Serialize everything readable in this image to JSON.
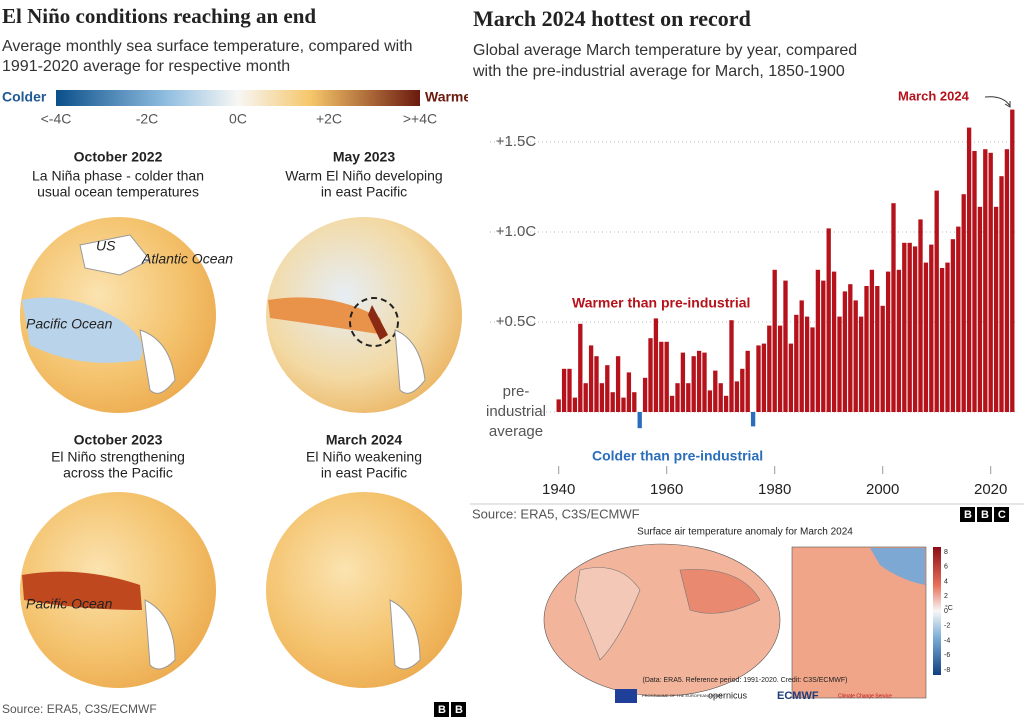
{
  "left_panel": {
    "title": "El Niño conditions reaching an end",
    "subtitle": [
      "Average monthly sea surface temperature, compared with",
      "1991-2020 average for respective month"
    ],
    "legend": {
      "low_label": "Colder",
      "high_label": "Warmer",
      "ticks": [
        "<-4C",
        "-2C",
        "0C",
        "+2C",
        ">+4C"
      ]
    },
    "panels": [
      {
        "title": "October 2022",
        "caption": [
          "La Niña phase - colder than",
          "usual ocean temperatures"
        ],
        "labels": [
          "US",
          "Atlantic Ocean",
          "Pacific Ocean"
        ]
      },
      {
        "title": "May 2023",
        "caption": [
          "Warm El Niño developing",
          "in east Pacific"
        ],
        "labels": []
      },
      {
        "title": "October 2023",
        "caption": [
          "El Niño strengthening",
          "across the Pacific"
        ],
        "labels": [
          "Pacific Ocean"
        ]
      },
      {
        "title": "March 2024",
        "caption": [
          "El Niño weakening",
          "in east Pacific"
        ],
        "labels": []
      }
    ],
    "source": "Source: ERA5, C3S/ECMWF",
    "logo": "BBC"
  },
  "chart_data": {
    "type": "bar",
    "title": "March 2024 hottest on record",
    "subtitle": [
      "Global average March temperature by year, compared",
      "with the pre-industrial average for March, 1850-1900"
    ],
    "x": [
      1940,
      1941,
      1942,
      1943,
      1944,
      1945,
      1946,
      1947,
      1948,
      1949,
      1950,
      1951,
      1952,
      1953,
      1954,
      1955,
      1956,
      1957,
      1958,
      1959,
      1960,
      1961,
      1962,
      1963,
      1964,
      1965,
      1966,
      1967,
      1968,
      1969,
      1970,
      1971,
      1972,
      1973,
      1974,
      1975,
      1976,
      1977,
      1978,
      1979,
      1980,
      1981,
      1982,
      1983,
      1984,
      1985,
      1986,
      1987,
      1988,
      1989,
      1990,
      1991,
      1992,
      1993,
      1994,
      1995,
      1996,
      1997,
      1998,
      1999,
      2000,
      2001,
      2002,
      2003,
      2004,
      2005,
      2006,
      2007,
      2008,
      2009,
      2010,
      2011,
      2012,
      2013,
      2014,
      2015,
      2016,
      2017,
      2018,
      2019,
      2020,
      2021,
      2022,
      2023,
      2024
    ],
    "values": [
      0.07,
      0.24,
      0.24,
      0.08,
      0.49,
      0.16,
      0.37,
      0.31,
      0.16,
      0.26,
      0.11,
      0.31,
      0.08,
      0.22,
      0.11,
      -0.09,
      0.19,
      0.41,
      0.52,
      0.39,
      0.39,
      0.09,
      0.16,
      0.33,
      0.16,
      0.31,
      0.34,
      0.33,
      0.12,
      0.23,
      0.16,
      0.09,
      0.51,
      0.17,
      0.24,
      0.34,
      -0.08,
      0.37,
      0.38,
      0.48,
      0.79,
      0.48,
      0.73,
      0.38,
      0.54,
      0.62,
      0.53,
      0.47,
      0.79,
      0.73,
      1.02,
      0.78,
      0.53,
      0.67,
      0.71,
      0.62,
      0.53,
      0.7,
      0.79,
      0.7,
      0.59,
      0.78,
      1.16,
      0.79,
      0.94,
      0.94,
      0.92,
      1.07,
      0.83,
      0.93,
      1.23,
      0.8,
      0.83,
      0.96,
      1.03,
      1.21,
      1.58,
      1.45,
      1.14,
      1.46,
      1.44,
      1.14,
      1.31,
      1.46,
      1.68
    ],
    "xlim": [
      1939.5,
      2024.5
    ],
    "xticks": [
      1940,
      1960,
      1980,
      2000,
      2020
    ],
    "ylim": [
      -0.3,
      1.75
    ],
    "yticks": [
      {
        "value": 0,
        "label": "pre-industrial average"
      },
      {
        "value": 0.5,
        "label": "+0.5C"
      },
      {
        "value": 1.0,
        "label": "+1.0C"
      },
      {
        "value": 1.5,
        "label": "+1.5C"
      }
    ],
    "grid": true,
    "color": "#b5121b",
    "negative_color": "#2a6ebb",
    "annotations": [
      "Warmer than pre-industrial",
      "Colder than pre-industrial",
      "March 2024"
    ],
    "source": "Source: ERA5, C3S/ECMWF",
    "logo": "BBC"
  },
  "map_panel": {
    "title": "Surface air temperature anomaly for March 2024",
    "caption": "(Data: ERA5.  Reference period: 1991-2020.  Credit: C3S/ECMWF)",
    "colorbar_ticks": [
      8,
      6,
      4,
      2,
      0,
      -2,
      -4,
      -6,
      -8
    ],
    "colorbar_unit": "°C",
    "logos": [
      "PROGRAMME OF THE EUROPEAN UNION",
      "opernicus",
      "ECMWF",
      "Climate Change Service"
    ]
  }
}
